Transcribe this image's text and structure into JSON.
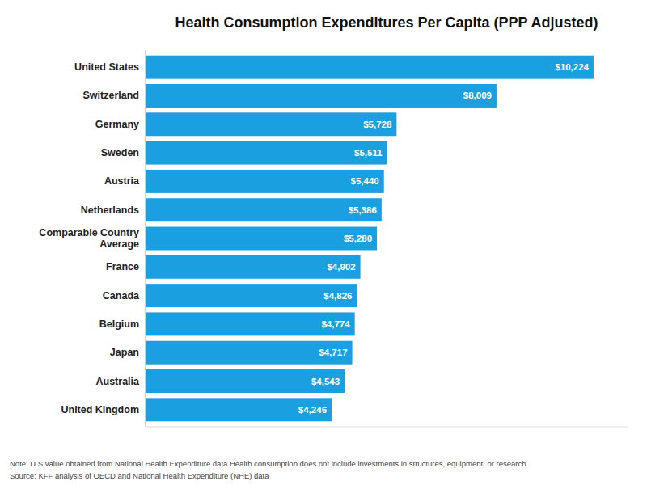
{
  "chart_data": {
    "type": "bar",
    "orientation": "horizontal",
    "title": "Health Consumption Expenditures Per Capita (PPP Adjusted)",
    "categories": [
      "United States",
      "Switzerland",
      "Germany",
      "Sweden",
      "Austria",
      "Netherlands",
      "Comparable Country\nAverage",
      "France",
      "Canada",
      "Belgium",
      "Japan",
      "Australia",
      "United Kingdom"
    ],
    "values": [
      10224,
      8009,
      5728,
      5511,
      5440,
      5386,
      5280,
      4902,
      4826,
      4774,
      4717,
      4543,
      4246
    ],
    "value_labels": [
      "$10,224",
      "$8,009",
      "$5,728",
      "$5,511",
      "$5,440",
      "$5,386",
      "$5,280",
      "$4,902",
      "$4,826",
      "$4,774",
      "$4,717",
      "$4,543",
      "$4,246"
    ],
    "data_labels": true,
    "color": "#1a9fe0",
    "xlim": [
      0,
      11000
    ],
    "grid": false,
    "tick_labels": "y",
    "annotations": [
      "Note: U.S value obtained from National Health Expenditure data.Health consumption does not include investments in structures, equipment, or research.",
      "Source: KFF analysis of OECD and National Health Expenditure (NHE) data"
    ]
  }
}
